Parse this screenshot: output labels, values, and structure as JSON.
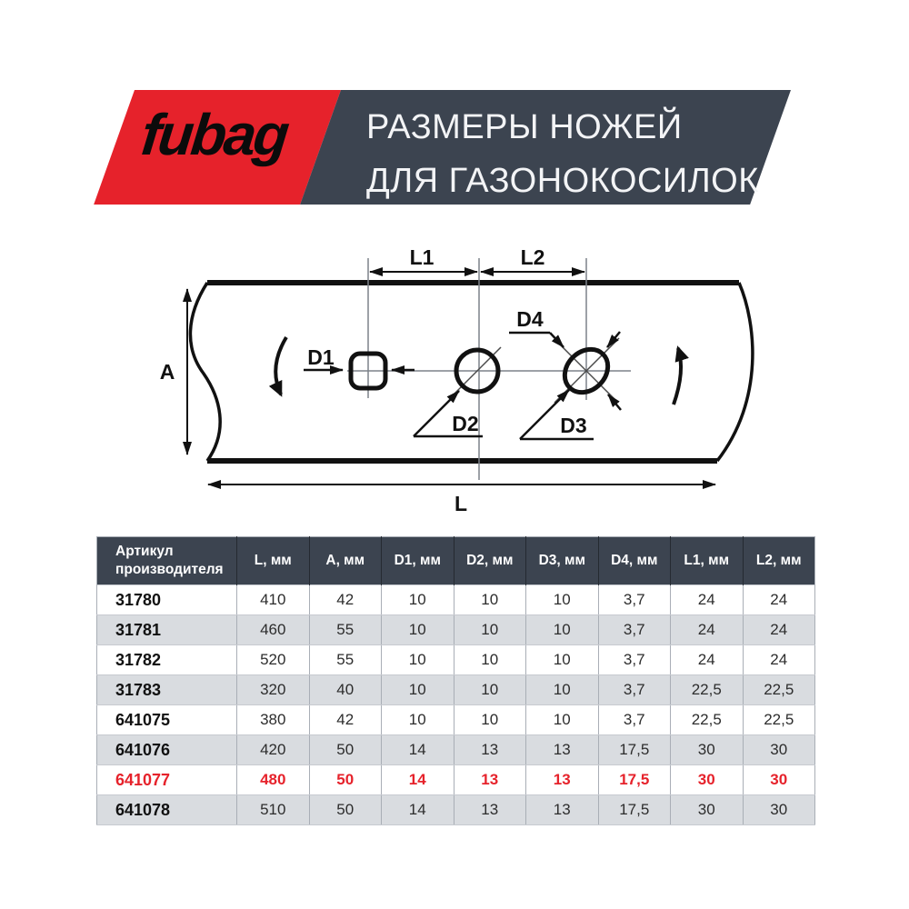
{
  "header": {
    "logo_text": "fubag",
    "title_line1": "РАЗМЕРЫ НОЖЕЙ",
    "title_line2": "ДЛЯ ГАЗОНОКОСИЛОК"
  },
  "diagram": {
    "labels": {
      "width": "A",
      "length": "L",
      "l1": "L1",
      "l2": "L2",
      "d1": "D1",
      "d2": "D2",
      "d3": "D3",
      "d4": "D4"
    }
  },
  "table": {
    "columns": [
      "Артикул производителя",
      "L, мм",
      "A, мм",
      "D1, мм",
      "D2, мм",
      "D3, мм",
      "D4, мм",
      "L1, мм",
      "L2, мм"
    ],
    "rows": [
      {
        "article": "31780",
        "values": [
          "410",
          "42",
          "10",
          "10",
          "10",
          "3,7",
          "24",
          "24"
        ],
        "highlighted": false
      },
      {
        "article": "31781",
        "values": [
          "460",
          "55",
          "10",
          "10",
          "10",
          "3,7",
          "24",
          "24"
        ],
        "highlighted": false
      },
      {
        "article": "31782",
        "values": [
          "520",
          "55",
          "10",
          "10",
          "10",
          "3,7",
          "24",
          "24"
        ],
        "highlighted": false
      },
      {
        "article": "31783",
        "values": [
          "320",
          "40",
          "10",
          "10",
          "10",
          "3,7",
          "22,5",
          "22,5"
        ],
        "highlighted": false
      },
      {
        "article": "641075",
        "values": [
          "380",
          "42",
          "10",
          "10",
          "10",
          "3,7",
          "22,5",
          "22,5"
        ],
        "highlighted": false
      },
      {
        "article": "641076",
        "values": [
          "420",
          "50",
          "14",
          "13",
          "13",
          "17,5",
          "30",
          "30"
        ],
        "highlighted": false
      },
      {
        "article": "641077",
        "values": [
          "480",
          "50",
          "14",
          "13",
          "13",
          "17,5",
          "30",
          "30"
        ],
        "highlighted": true
      },
      {
        "article": "641078",
        "values": [
          "510",
          "50",
          "14",
          "13",
          "13",
          "17,5",
          "30",
          "30"
        ],
        "highlighted": false
      }
    ]
  },
  "colors": {
    "brand_red": "#e6222b",
    "header_dark": "#3c4450",
    "row_alt_gray": "#d9dce0",
    "highlight_text": "#e6222b"
  }
}
